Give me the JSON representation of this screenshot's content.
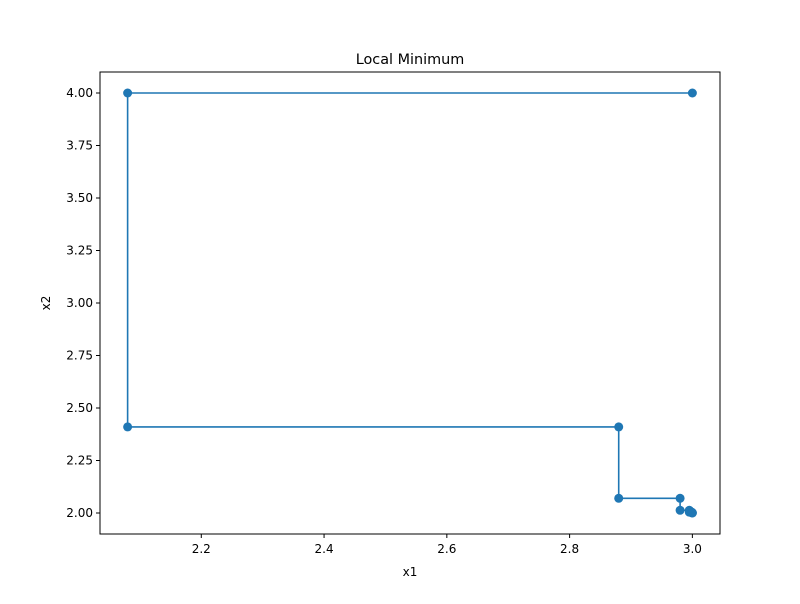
{
  "chart_data": {
    "type": "line",
    "title": "Local Minimum",
    "xlabel": "x1",
    "ylabel": "x2",
    "xlim": [
      2.035,
      3.045
    ],
    "ylim": [
      1.9,
      4.1
    ],
    "x_ticks": [
      2.2,
      2.4,
      2.6,
      2.8,
      3.0
    ],
    "x_tick_labels": [
      "2.2",
      "2.4",
      "2.6",
      "2.8",
      "3.0"
    ],
    "y_ticks": [
      2.0,
      2.25,
      2.5,
      2.75,
      3.0,
      3.25,
      3.5,
      3.75,
      4.0
    ],
    "y_tick_labels": [
      "2.00",
      "2.25",
      "2.50",
      "2.75",
      "3.00",
      "3.25",
      "3.50",
      "3.75",
      "4.00"
    ],
    "grid": false,
    "legend": "none",
    "marker": "circle",
    "color": "#1f77b4",
    "series": [
      {
        "points": [
          [
            3.0,
            4.0
          ],
          [
            2.08,
            4.0
          ],
          [
            2.08,
            2.41
          ],
          [
            2.88,
            2.41
          ],
          [
            2.88,
            2.07
          ],
          [
            2.98,
            2.07
          ],
          [
            2.98,
            2.013
          ],
          [
            2.995,
            2.013
          ],
          [
            2.995,
            2.004
          ],
          [
            2.999,
            2.004
          ],
          [
            2.999,
            2.001
          ],
          [
            3.0,
            2.001
          ],
          [
            3.0,
            2.0
          ]
        ]
      }
    ]
  }
}
